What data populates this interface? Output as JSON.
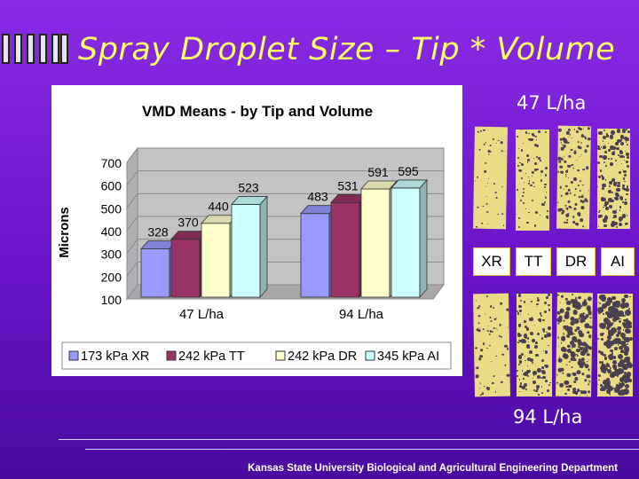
{
  "slide": {
    "title": "Spray Droplet Size – Tip * Volume",
    "footer": "Kansas State University Biological and Agricultural Engineering Department",
    "photo_top_label": "47 L/ha",
    "photo_bottom_label": "94 L/ha",
    "tips": [
      "XR",
      "TT",
      "DR",
      "AI"
    ]
  },
  "chart_data": {
    "type": "bar",
    "title": "VMD Means - by Tip and Volume",
    "xlabel": "",
    "ylabel": "Microns",
    "categories": [
      "47 L/ha",
      "94 L/ha"
    ],
    "yticks": [
      100,
      200,
      300,
      400,
      500,
      600,
      700
    ],
    "ylim": [
      100,
      700
    ],
    "grid": true,
    "legend_position": "bottom",
    "series": [
      {
        "name": "173 kPa XR",
        "values": [
          328,
          483
        ],
        "color": "#9999ff"
      },
      {
        "name": "242 kPa TT",
        "values": [
          370,
          531
        ],
        "color": "#993366"
      },
      {
        "name": "242 kPa DR",
        "values": [
          440,
          591
        ],
        "color": "#ffffcc"
      },
      {
        "name": "345 kPa AI",
        "values": [
          523,
          595
        ],
        "color": "#ccffff"
      }
    ]
  }
}
